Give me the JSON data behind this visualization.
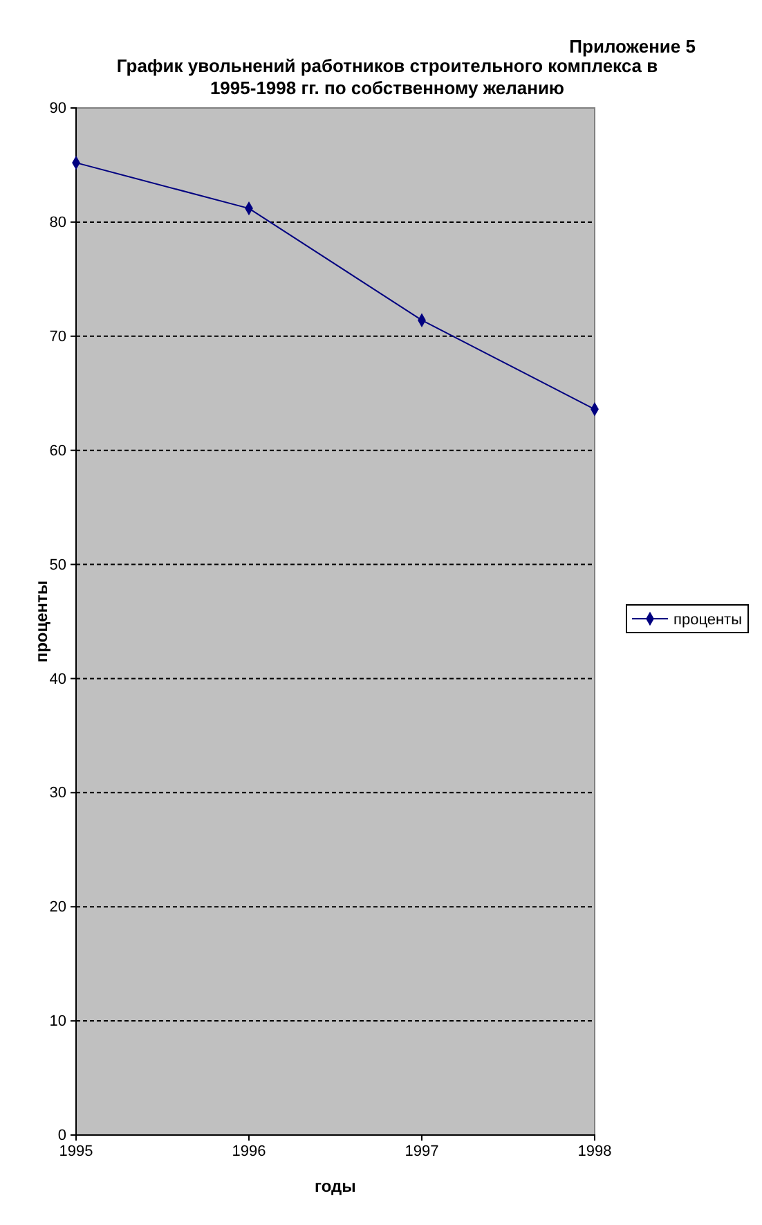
{
  "chart_data": {
    "type": "line",
    "title": "График  увольнений работников строительного комплекса в 1995-1998 гг. по собственному желанию",
    "annotations": [
      "Приложение 5"
    ],
    "xlabel": "годы",
    "ylabel": "проценты",
    "categories": [
      "1995",
      "1996",
      "1997",
      "1998"
    ],
    "series": [
      {
        "name": "проценты",
        "color": "#000080",
        "values": [
          85.2,
          81.2,
          71.4,
          63.6
        ]
      }
    ],
    "ylim": [
      0,
      90
    ],
    "yticks": [
      0,
      10,
      20,
      30,
      40,
      50,
      60,
      70,
      80,
      90
    ],
    "grid": "y",
    "legend": "right",
    "marker": "diamond",
    "line_style": "solid"
  }
}
